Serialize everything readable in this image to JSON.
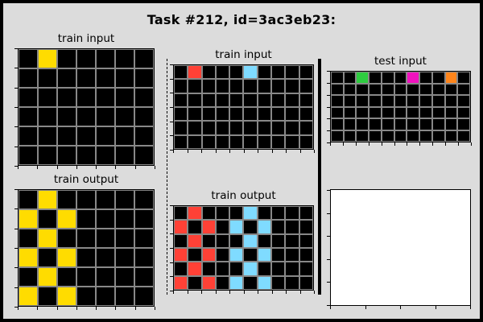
{
  "title": "Task #212, id=3ac3eb23:",
  "palette": {
    "0": "#000000",
    "2": "#ff4136",
    "3": "#2ecc40",
    "4": "#ffdc00",
    "6": "#f012be",
    "7": "#ff851b",
    "8": "#7fdbff"
  },
  "panels": {
    "train1_input": {
      "label": "train input",
      "rows": 6,
      "cols": 7,
      "cells": [
        [
          0,
          4,
          0,
          0,
          0,
          0,
          0
        ],
        [
          0,
          0,
          0,
          0,
          0,
          0,
          0
        ],
        [
          0,
          0,
          0,
          0,
          0,
          0,
          0
        ],
        [
          0,
          0,
          0,
          0,
          0,
          0,
          0
        ],
        [
          0,
          0,
          0,
          0,
          0,
          0,
          0
        ],
        [
          0,
          0,
          0,
          0,
          0,
          0,
          0
        ]
      ]
    },
    "train1_output": {
      "label": "train output",
      "rows": 6,
      "cols": 7,
      "cells": [
        [
          0,
          4,
          0,
          0,
          0,
          0,
          0
        ],
        [
          4,
          0,
          4,
          0,
          0,
          0,
          0
        ],
        [
          0,
          4,
          0,
          0,
          0,
          0,
          0
        ],
        [
          4,
          0,
          4,
          0,
          0,
          0,
          0
        ],
        [
          0,
          4,
          0,
          0,
          0,
          0,
          0
        ],
        [
          4,
          0,
          4,
          0,
          0,
          0,
          0
        ]
      ]
    },
    "train2_input": {
      "label": "train input",
      "rows": 6,
      "cols": 10,
      "cells": [
        [
          0,
          2,
          0,
          0,
          0,
          8,
          0,
          0,
          0,
          0
        ],
        [
          0,
          0,
          0,
          0,
          0,
          0,
          0,
          0,
          0,
          0
        ],
        [
          0,
          0,
          0,
          0,
          0,
          0,
          0,
          0,
          0,
          0
        ],
        [
          0,
          0,
          0,
          0,
          0,
          0,
          0,
          0,
          0,
          0
        ],
        [
          0,
          0,
          0,
          0,
          0,
          0,
          0,
          0,
          0,
          0
        ],
        [
          0,
          0,
          0,
          0,
          0,
          0,
          0,
          0,
          0,
          0
        ]
      ]
    },
    "train2_output": {
      "label": "train output",
      "rows": 6,
      "cols": 10,
      "cells": [
        [
          0,
          2,
          0,
          0,
          0,
          8,
          0,
          0,
          0,
          0
        ],
        [
          2,
          0,
          2,
          0,
          8,
          0,
          8,
          0,
          0,
          0
        ],
        [
          0,
          2,
          0,
          0,
          0,
          8,
          0,
          0,
          0,
          0
        ],
        [
          2,
          0,
          2,
          0,
          8,
          0,
          8,
          0,
          0,
          0
        ],
        [
          0,
          2,
          0,
          0,
          0,
          8,
          0,
          0,
          0,
          0
        ],
        [
          2,
          0,
          2,
          0,
          8,
          0,
          8,
          0,
          0,
          0
        ]
      ]
    },
    "test_input": {
      "label": "test input",
      "rows": 6,
      "cols": 11,
      "cells": [
        [
          0,
          0,
          3,
          0,
          0,
          0,
          6,
          0,
          0,
          7,
          0
        ],
        [
          0,
          0,
          0,
          0,
          0,
          0,
          0,
          0,
          0,
          0,
          0
        ],
        [
          0,
          0,
          0,
          0,
          0,
          0,
          0,
          0,
          0,
          0,
          0
        ],
        [
          0,
          0,
          0,
          0,
          0,
          0,
          0,
          0,
          0,
          0,
          0
        ],
        [
          0,
          0,
          0,
          0,
          0,
          0,
          0,
          0,
          0,
          0,
          0
        ],
        [
          0,
          0,
          0,
          0,
          0,
          0,
          0,
          0,
          0,
          0,
          0
        ]
      ]
    }
  }
}
